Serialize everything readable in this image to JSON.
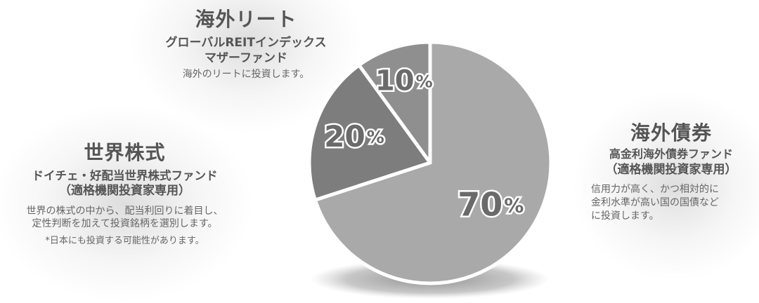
{
  "chart_data": {
    "type": "pie",
    "slices": [
      {
        "label": "海外債券",
        "value": 70,
        "value_label": "70",
        "percent_sign": "%",
        "color": "#a9a9a9"
      },
      {
        "label": "世界株式",
        "value": 20,
        "value_label": "20",
        "percent_sign": "%",
        "color": "#7d7d7d"
      },
      {
        "label": "海外リート",
        "value": 10,
        "value_label": "10",
        "percent_sign": "%",
        "color": "#8f8f8f"
      }
    ]
  },
  "reit": {
    "title": "海外リート",
    "fund_line1": "グローバルREITインデックス",
    "fund_line2": "マザーファンド",
    "desc": "海外のリートに投資します。"
  },
  "equity": {
    "title": "世界株式",
    "fund_line1": "ドイチェ・好配当世界株式ファンド",
    "fund_line2": "（適格機関投資家専用）",
    "desc_line1": "世界の株式の中から、配当利回りに着目し、",
    "desc_line2": "定性判断を加えて投資銘柄を選別します。",
    "note": "*日本にも投資する可能性があります。"
  },
  "bond": {
    "title": "海外債券",
    "fund_line1": "高金利海外債券ファンド",
    "fund_line2": "（適格機関投資家専用）",
    "desc_line1": "信用力が高く、かつ相対的に",
    "desc_line2": "金利水準が高い国の国債など",
    "desc_line3": "に投資します。"
  }
}
